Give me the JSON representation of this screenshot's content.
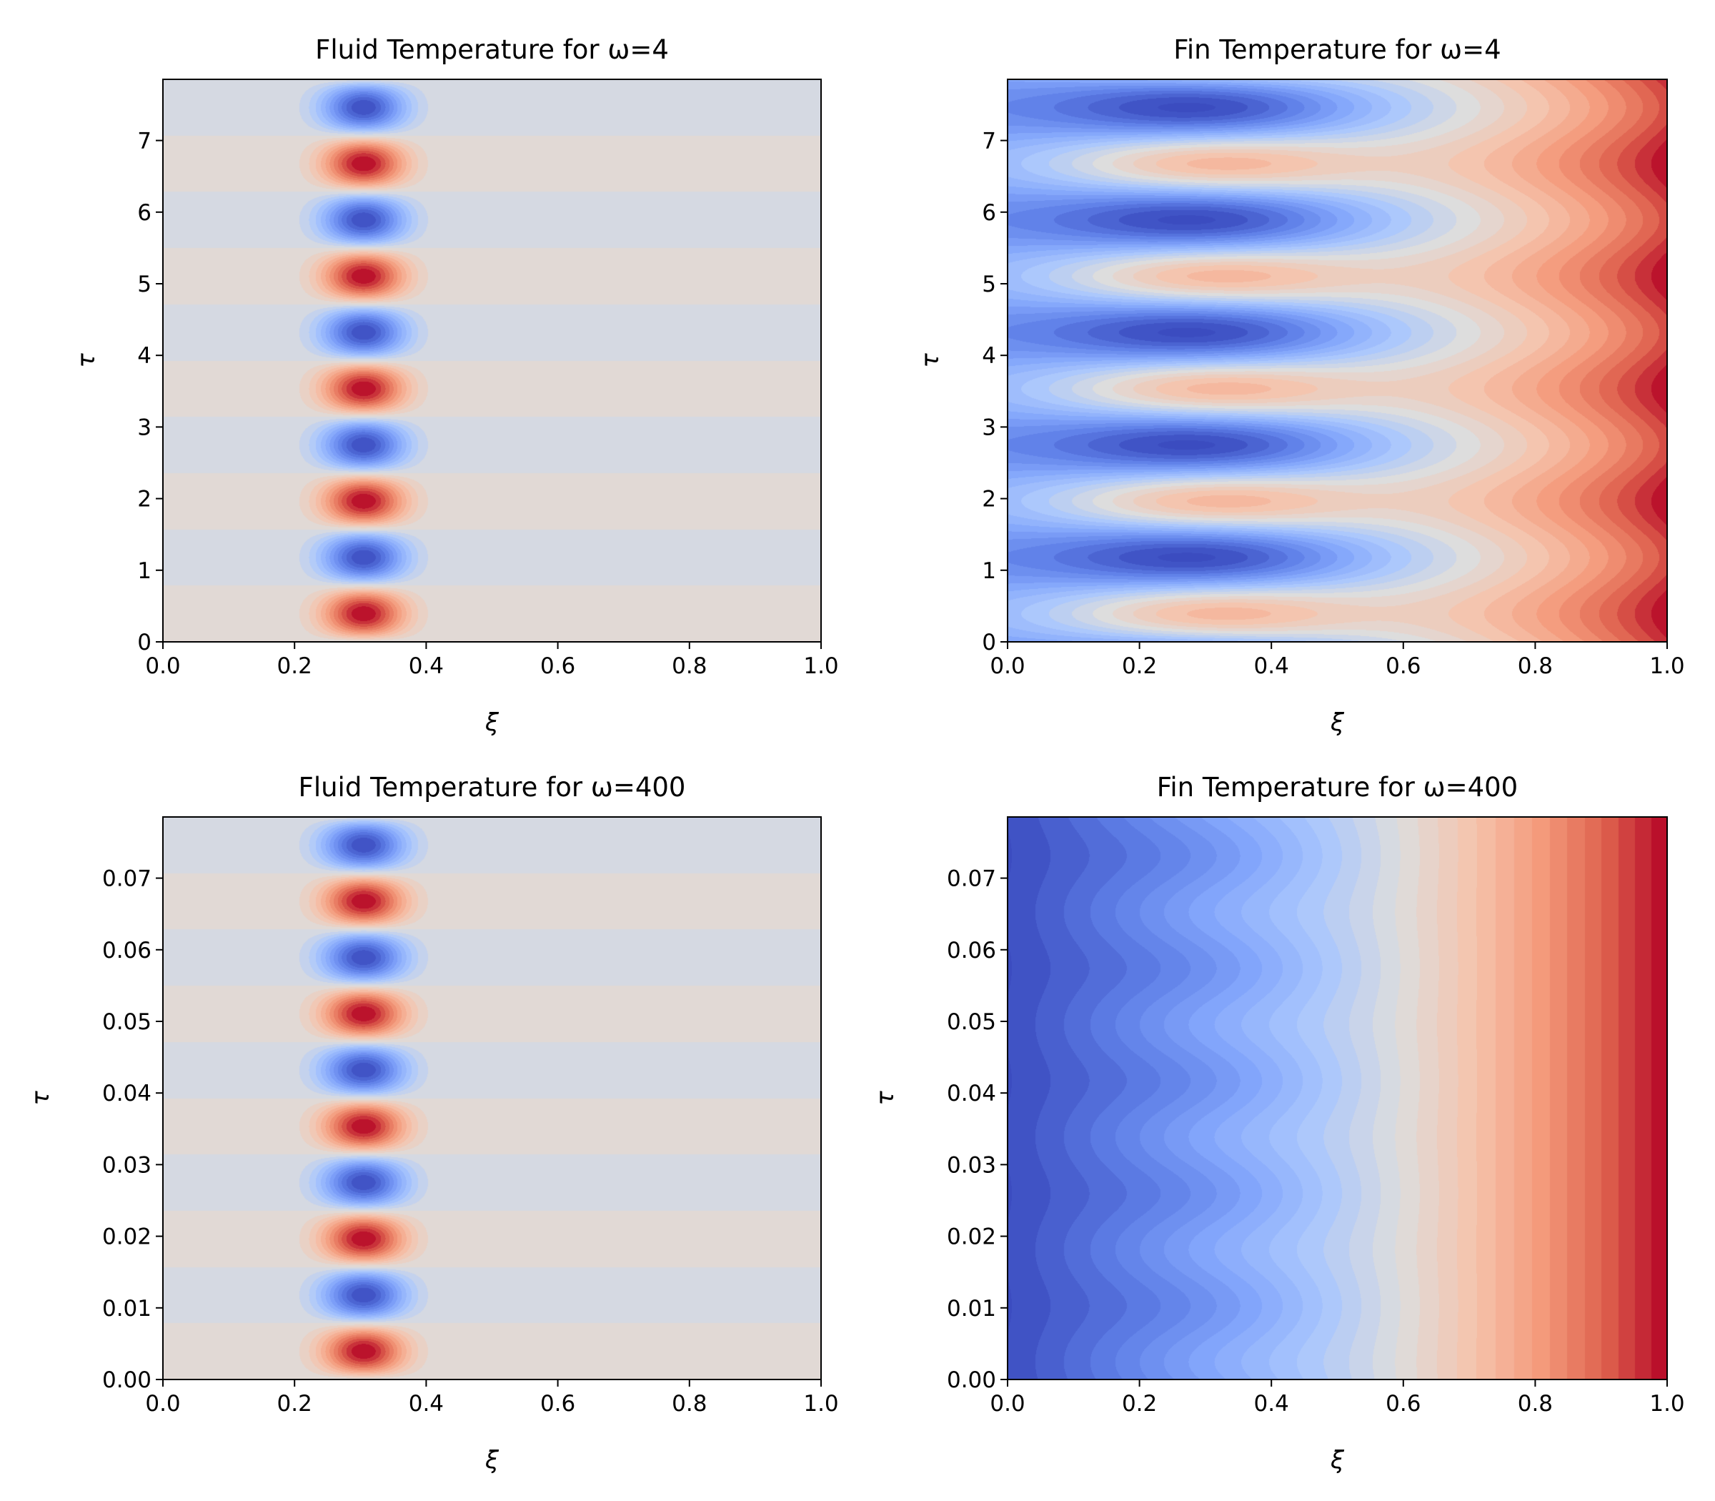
{
  "figure": {
    "colormap": "coolwarm",
    "colors": {
      "axis": "#000000",
      "background": "#ffffff"
    }
  },
  "chart_data": [
    {
      "type": "heatmap",
      "field": "fluid",
      "omega": 4,
      "title": "Fluid Temperature for ω=4",
      "xlabel": "ξ",
      "ylabel": "τ",
      "xlim": [
        0,
        1
      ],
      "ylim": [
        0,
        7.854
      ],
      "xticks": [
        0,
        0.2,
        0.4,
        0.6,
        0.8,
        1.0
      ],
      "xtick_labels": [
        "0.0",
        "0.2",
        "0.4",
        "0.6",
        "0.8",
        "1.0"
      ],
      "yticks": [
        0,
        1,
        2,
        3,
        4,
        5,
        6,
        7
      ],
      "ytick_labels": [
        "0",
        "1",
        "2",
        "3",
        "4",
        "5",
        "6",
        "7"
      ],
      "colormap": "coolwarm"
    },
    {
      "type": "heatmap",
      "field": "fin",
      "omega": 4,
      "title": "Fin Temperature for ω=4",
      "xlabel": "ξ",
      "ylabel": "τ",
      "xlim": [
        0,
        1
      ],
      "ylim": [
        0,
        7.854
      ],
      "xticks": [
        0,
        0.2,
        0.4,
        0.6,
        0.8,
        1.0
      ],
      "xtick_labels": [
        "0.0",
        "0.2",
        "0.4",
        "0.6",
        "0.8",
        "1.0"
      ],
      "yticks": [
        0,
        1,
        2,
        3,
        4,
        5,
        6,
        7
      ],
      "ytick_labels": [
        "0",
        "1",
        "2",
        "3",
        "4",
        "5",
        "6",
        "7"
      ],
      "colormap": "coolwarm"
    },
    {
      "type": "heatmap",
      "field": "fluid",
      "omega": 400,
      "title": "Fluid Temperature for ω=400",
      "xlabel": "ξ",
      "ylabel": "τ",
      "xlim": [
        0,
        1
      ],
      "ylim": [
        0,
        0.07854
      ],
      "xticks": [
        0,
        0.2,
        0.4,
        0.6,
        0.8,
        1.0
      ],
      "xtick_labels": [
        "0.0",
        "0.2",
        "0.4",
        "0.6",
        "0.8",
        "1.0"
      ],
      "yticks": [
        0,
        0.01,
        0.02,
        0.03,
        0.04,
        0.05,
        0.06,
        0.07
      ],
      "ytick_labels": [
        "0.00",
        "0.01",
        "0.02",
        "0.03",
        "0.04",
        "0.05",
        "0.06",
        "0.07"
      ],
      "colormap": "coolwarm"
    },
    {
      "type": "heatmap",
      "field": "fin",
      "omega": 400,
      "title": "Fin Temperature for ω=400",
      "xlabel": "ξ",
      "ylabel": "τ",
      "xlim": [
        0,
        1
      ],
      "ylim": [
        0,
        0.07854
      ],
      "xticks": [
        0,
        0.2,
        0.4,
        0.6,
        0.8,
        1.0
      ],
      "xtick_labels": [
        "0.0",
        "0.2",
        "0.4",
        "0.6",
        "0.8",
        "1.0"
      ],
      "yticks": [
        0,
        0.01,
        0.02,
        0.03,
        0.04,
        0.05,
        0.06,
        0.07
      ],
      "ytick_labels": [
        "0.00",
        "0.01",
        "0.02",
        "0.03",
        "0.04",
        "0.05",
        "0.06",
        "0.07"
      ],
      "colormap": "coolwarm"
    }
  ]
}
